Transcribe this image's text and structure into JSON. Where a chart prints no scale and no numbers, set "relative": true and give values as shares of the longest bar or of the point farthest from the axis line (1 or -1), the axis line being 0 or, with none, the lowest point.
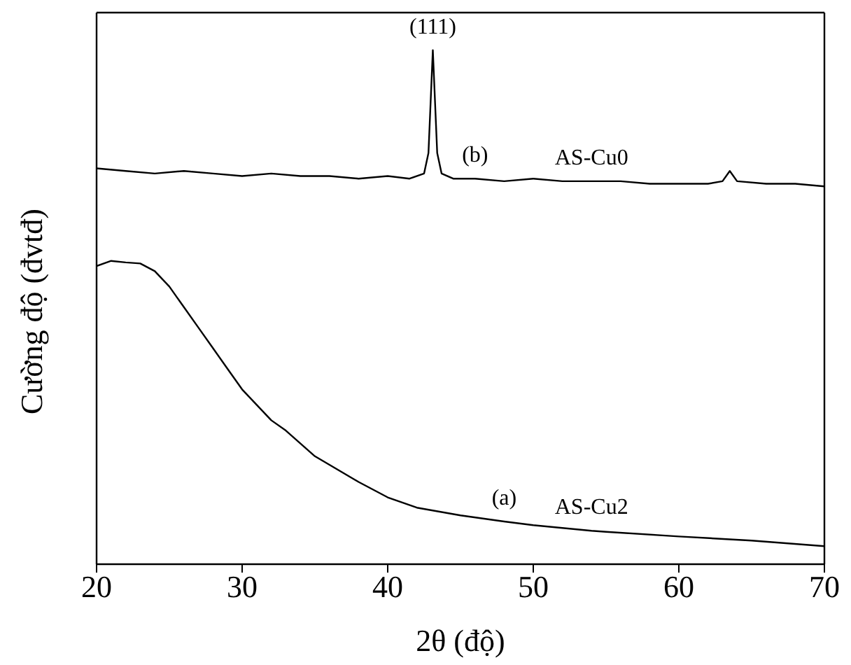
{
  "chart_data": {
    "type": "line",
    "relative": true,
    "xlabel": "2θ (độ)",
    "ylabel": "Cường độ (đvtđ)",
    "xlim": [
      20,
      70
    ],
    "xticks": [
      20,
      30,
      40,
      50,
      60,
      70
    ],
    "grid": false,
    "legend": false,
    "marker": "none",
    "line_style": "solid",
    "series": [
      {
        "color": "#000000",
        "x": [
          20,
          22,
          24,
          26,
          28,
          30,
          32,
          34,
          36,
          38,
          40,
          41.5,
          42.5,
          42.8,
          43.1,
          43.4,
          43.7,
          44.5,
          46,
          48,
          50,
          52,
          54,
          56,
          58,
          60,
          62,
          63,
          63.5,
          64,
          66,
          68,
          70
        ],
        "values": [
          0.77,
          0.765,
          0.76,
          0.765,
          0.76,
          0.755,
          0.76,
          0.755,
          0.755,
          0.75,
          0.755,
          0.75,
          0.76,
          0.8,
          1.0,
          0.8,
          0.76,
          0.75,
          0.75,
          0.745,
          0.75,
          0.745,
          0.745,
          0.745,
          0.74,
          0.74,
          0.74,
          0.745,
          0.765,
          0.745,
          0.74,
          0.74,
          0.735
        ]
      },
      {
        "color": "#000000",
        "x": [
          20,
          21,
          22,
          23,
          24,
          25,
          26,
          27,
          28,
          29,
          30,
          31,
          32,
          33,
          35,
          38,
          40,
          42,
          45,
          48,
          50,
          54,
          55,
          60,
          65,
          70
        ],
        "values": [
          0.58,
          0.59,
          0.587,
          0.585,
          0.57,
          0.54,
          0.5,
          0.46,
          0.42,
          0.38,
          0.34,
          0.31,
          0.28,
          0.26,
          0.21,
          0.16,
          0.13,
          0.11,
          0.095,
          0.083,
          0.076,
          0.065,
          0.063,
          0.054,
          0.046,
          0.035
        ]
      }
    ],
    "annotations": [
      {
        "text": "(111)",
        "x": 43.1,
        "y": 1.0
      },
      {
        "text": "(b)",
        "x": 46,
        "y": 0.75
      },
      {
        "text": "AS-Cu0",
        "x": 54,
        "y": 0.745
      },
      {
        "text": "(a)",
        "x": 48,
        "y": 0.083
      },
      {
        "text": "AS-Cu2",
        "x": 54,
        "y": 0.065
      }
    ]
  }
}
